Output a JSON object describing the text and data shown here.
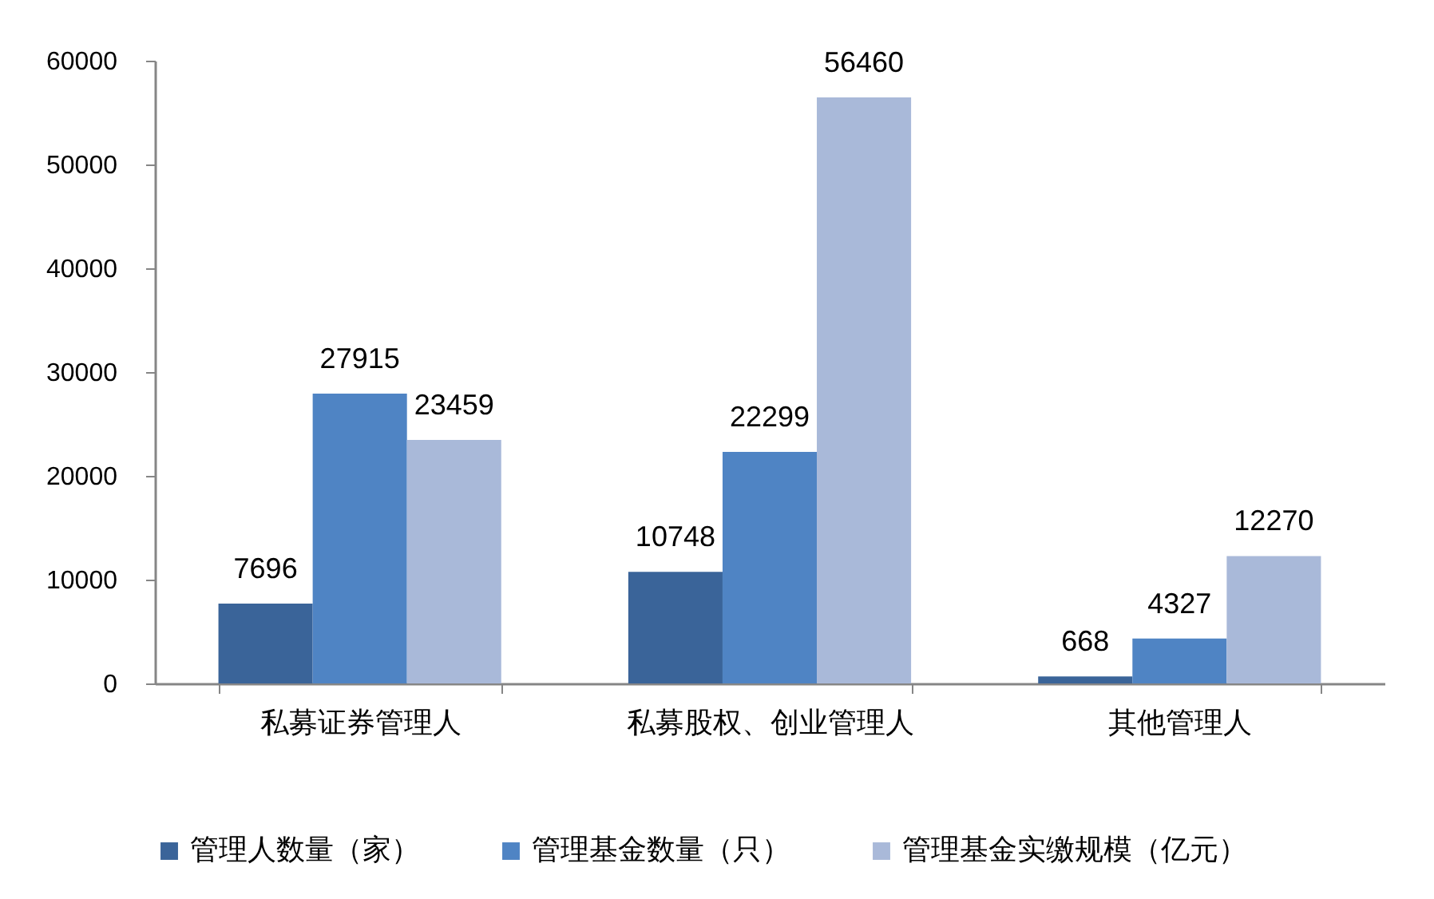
{
  "chart_data": {
    "type": "bar",
    "categories": [
      "私募证券管理人",
      "私募股权、创业管理人",
      "其他管理人"
    ],
    "series": [
      {
        "name": "管理人数量（家）",
        "color": "#3a6499",
        "values": [
          7696,
          10748,
          668
        ]
      },
      {
        "name": "管理基金数量（只）",
        "color": "#4f84c4",
        "values": [
          27915,
          22299,
          4327
        ]
      },
      {
        "name": "管理基金实缴规模（亿元）",
        "color": "#a9b9d9",
        "values": [
          23459,
          56460,
          12270
        ]
      }
    ],
    "ylim": [
      0,
      60000
    ],
    "yticks": [
      0,
      10000,
      20000,
      30000,
      40000,
      50000,
      60000
    ],
    "data_labels": true,
    "legend": "bottom",
    "grid": false
  }
}
